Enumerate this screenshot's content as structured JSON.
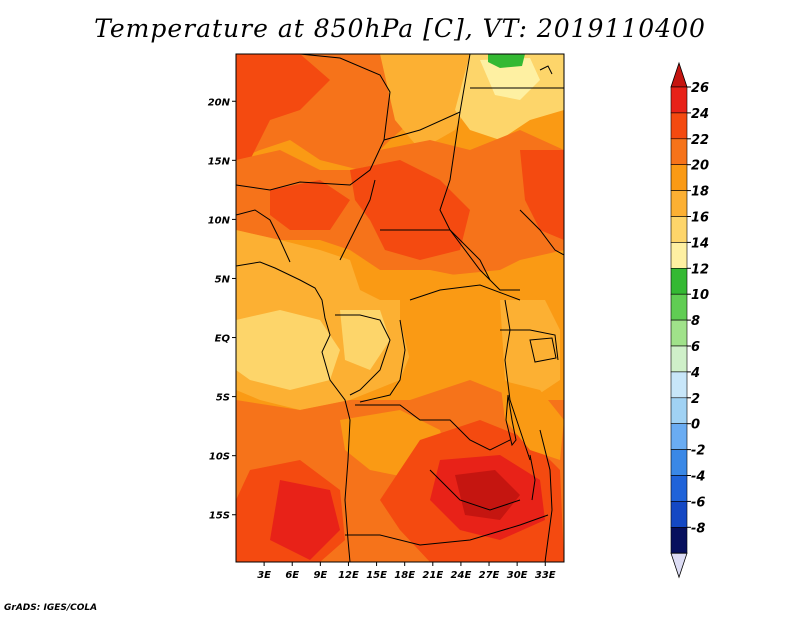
{
  "title": "Temperature at 850hPa [C], VT: 2019110400",
  "footer": "GrADS: IGES/COLA",
  "map": {
    "lon_range": [
      0,
      35
    ],
    "lat_range": [
      -19,
      24
    ],
    "lat_ticks": [
      {
        "value": 20,
        "label": "20N"
      },
      {
        "value": 15,
        "label": "15N"
      },
      {
        "value": 10,
        "label": "10N"
      },
      {
        "value": 5,
        "label": "5N"
      },
      {
        "value": 0,
        "label": "EQ"
      },
      {
        "value": -5,
        "label": "5S"
      },
      {
        "value": -10,
        "label": "10S"
      },
      {
        "value": -15,
        "label": "15S"
      }
    ],
    "lon_ticks": [
      {
        "value": 3,
        "label": "3E"
      },
      {
        "value": 6,
        "label": "6E"
      },
      {
        "value": 9,
        "label": "9E"
      },
      {
        "value": 12,
        "label": "12E"
      },
      {
        "value": 15,
        "label": "15E"
      },
      {
        "value": 18,
        "label": "18E"
      },
      {
        "value": 21,
        "label": "21E"
      },
      {
        "value": 24,
        "label": "24E"
      },
      {
        "value": 27,
        "label": "27E"
      },
      {
        "value": 30,
        "label": "30E"
      },
      {
        "value": 33,
        "label": "33E"
      }
    ]
  },
  "colorbar": {
    "levels": [
      "26",
      "24",
      "22",
      "20",
      "18",
      "16",
      "14",
      "12",
      "10",
      "8",
      "6",
      "4",
      "2",
      "0",
      "-2",
      "-4",
      "-6",
      "-8"
    ],
    "bins": [
      "#e82218",
      "#f44a10",
      "#f6731a",
      "#fa9a14",
      "#fcb033",
      "#fdd56a",
      "#fef0a2",
      "#34b933",
      "#60cd53",
      "#a0e28a",
      "#cff0c9",
      "#c8e6f9",
      "#a0d2f4",
      "#6aacf2",
      "#3a88e6",
      "#1f63d9",
      "#1448c4",
      "#0d2aa0"
    ],
    "top_arrow_color": "#c51510",
    "bottom_arrow_color": "#dcdcf4",
    "bottom_bin_color": "#07105e"
  },
  "field_colors": {
    "c26": "#c51510",
    "c24": "#e82218",
    "c22": "#f44a10",
    "c20": "#fa9a14",
    "c18": "#fcb033",
    "c16": "#fdd56a",
    "c14": "#fef0a2",
    "c12": "#34b933"
  }
}
